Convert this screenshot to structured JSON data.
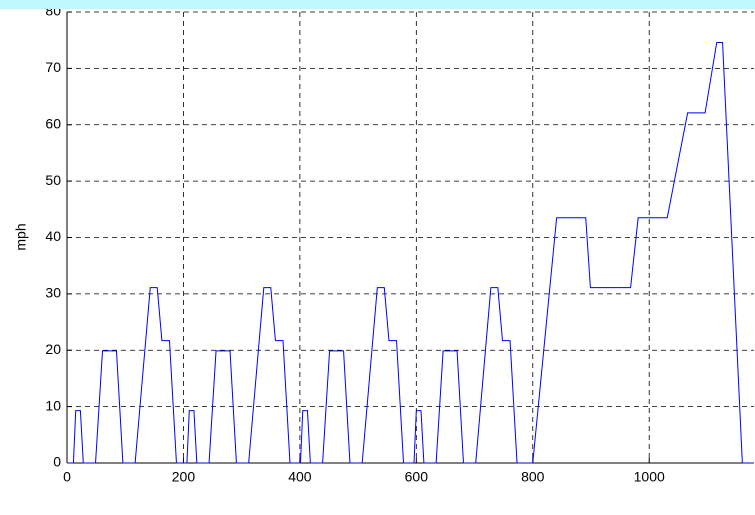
{
  "chart_data": {
    "type": "line",
    "y_label": "mph",
    "x": [
      0,
      11,
      15,
      23,
      28,
      49,
      61,
      85,
      96,
      117,
      143,
      155,
      163,
      176,
      188,
      195,
      206,
      210,
      218,
      223,
      244,
      256,
      280,
      291,
      312,
      338,
      350,
      358,
      371,
      383,
      390,
      401,
      405,
      413,
      418,
      439,
      451,
      475,
      486,
      507,
      533,
      545,
      553,
      566,
      578,
      585,
      596,
      600,
      608,
      613,
      634,
      646,
      670,
      681,
      702,
      728,
      740,
      748,
      761,
      773,
      800,
      841,
      891,
      899,
      968,
      981,
      1031,
      1066,
      1096,
      1116,
      1126,
      1160,
      1180
    ],
    "series": [
      {
        "color": "#0000ff",
        "values": [
          0,
          0,
          9.3,
          9.3,
          0,
          0,
          19.9,
          19.9,
          0,
          0,
          31.1,
          31.1,
          21.7,
          21.7,
          0,
          0,
          0,
          9.3,
          9.3,
          0,
          0,
          19.9,
          19.9,
          0,
          0,
          31.1,
          31.1,
          21.7,
          21.7,
          0,
          0,
          0,
          9.3,
          9.3,
          0,
          0,
          19.9,
          19.9,
          0,
          0,
          31.1,
          31.1,
          21.7,
          21.7,
          0,
          0,
          0,
          9.3,
          9.3,
          0,
          0,
          19.9,
          19.9,
          0,
          0,
          31.1,
          31.1,
          21.7,
          21.7,
          0,
          0,
          43.5,
          43.5,
          31.1,
          31.1,
          43.5,
          43.5,
          62.1,
          62.1,
          74.6,
          74.6,
          0,
          0
        ]
      }
    ],
    "xlim": [
      0,
      1180
    ],
    "xticks": [
      0,
      200,
      400,
      600,
      800,
      1000
    ],
    "ylim": [
      0,
      80
    ],
    "yticks": [
      0,
      10,
      20,
      30,
      40,
      50,
      60,
      70,
      80
    ],
    "grid": true
  }
}
